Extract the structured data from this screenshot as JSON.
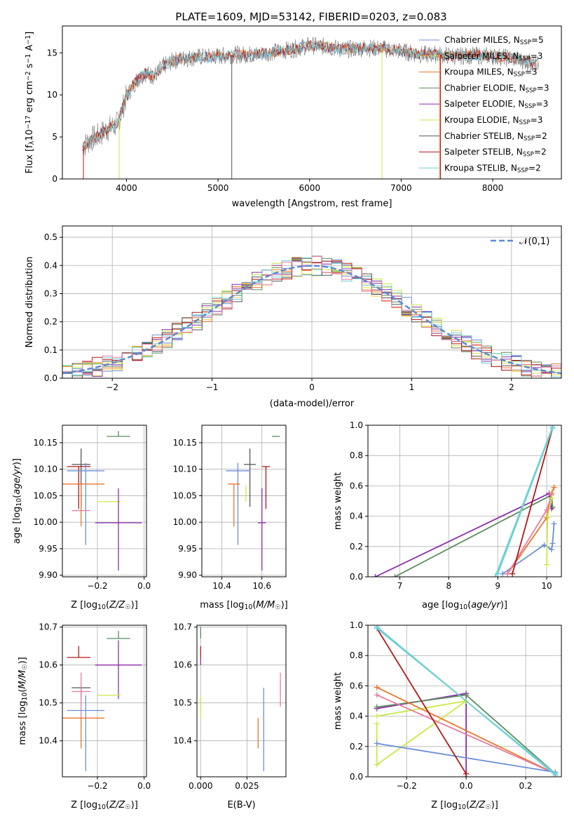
{
  "figure": {
    "title": "PLATE=1609, MJD=53142, FIBERID=0203, z=0.083"
  },
  "colors": {
    "chabrier_miles": "#6a8fd9",
    "salpeter_miles": "#e1d14f",
    "kroupa_miles": "#e8772c",
    "chabrier_elodie": "#5b8d5e",
    "salpeter_elodie": "#8d2dad",
    "kroupa_elodie": "#c8ea46",
    "chabrier_stelib": "#555555",
    "salpeter_stelib": "#b01818",
    "kroupa_stelib": "#6ed1d3",
    "pink": "#e87aa2",
    "gauss": "#5b8ad7",
    "data": "#777777",
    "grid": "#b0b0b0"
  },
  "chart_data": [
    {
      "id": "spectrum",
      "type": "line",
      "title": "PLATE=1609, MJD=53142, FIBERID=0203, z=0.083",
      "xlabel": "wavelength [Angstrom, rest frame]",
      "ylabel": "Flux [f_λ 10^-17 erg cm^-2 s^-1 A^-1]",
      "xlim": [
        3300,
        8750
      ],
      "ylim": [
        0,
        18.2
      ],
      "xticks": [
        4000,
        5000,
        6000,
        7000,
        8000
      ],
      "yticks": [
        0,
        5,
        10,
        15
      ],
      "legend_position": "right",
      "legend": [
        "Chabrier MILES, N_SSP=5",
        "Salpeter MILES, N_SSP=3",
        "Kroupa MILES, N_SSP=3",
        "Chabrier ELODIE, N_SSP=3",
        "Salpeter ELODIE, N_SSP=3",
        "Kroupa ELODIE, N_SSP=3",
        "Chabrier STELIB, N_SSP=2",
        "Salpeter STELIB, N_SSP=2",
        "Kroupa STELIB, N_SSP=2"
      ],
      "model_continuum": {
        "x": [
          3520,
          3600,
          3700,
          3800,
          3900,
          4000,
          4100,
          4200,
          4300,
          4400,
          4500,
          4600,
          4800,
          5000,
          5200,
          5400,
          5600,
          5800,
          6000,
          6200,
          6400,
          6600,
          6800,
          7000,
          7200,
          7400,
          7600,
          7800,
          8000,
          8200,
          8400,
          8500
        ],
        "y": [
          3.8,
          4.6,
          5.2,
          6.0,
          6.5,
          9.8,
          11.6,
          12.6,
          12.2,
          13.4,
          14.0,
          14.3,
          14.5,
          14.6,
          14.8,
          14.8,
          15.1,
          15.4,
          15.9,
          15.7,
          15.4,
          15.6,
          15.5,
          15.2,
          14.8,
          14.8,
          14.6,
          14.7,
          14.6,
          14.4,
          13.9,
          13.5
        ]
      }
    },
    {
      "id": "residual-histogram",
      "type": "line",
      "xlabel": "(data-model)/error",
      "ylabel": "Normed distribution",
      "xlim": [
        -2.5,
        2.5
      ],
      "ylim": [
        0,
        0.54
      ],
      "xticks": [
        -2,
        -1,
        0,
        1,
        2
      ],
      "yticks": [
        0.0,
        0.1,
        0.2,
        0.3,
        0.4,
        0.5
      ],
      "legend": [
        "𝒩(0,1)"
      ],
      "legend_position": "top-right",
      "bin_width": 0.1
    },
    {
      "id": "age-vs-metallicity",
      "type": "scatter",
      "xlabel": "Z [log10(Z/Z☉)]",
      "ylabel": "age [log10(age/yr)]",
      "xlim": [
        -0.35,
        0.01
      ],
      "ylim": [
        9.897,
        10.183
      ],
      "xticks": [
        -0.2,
        0.0
      ],
      "yticks": [
        9.9,
        9.95,
        10.0,
        10.05,
        10.1,
        10.15
      ],
      "points": [
        {
          "c": "chabrier_elodie",
          "x": -0.11,
          "y": 10.162,
          "xerr": 0.05,
          "yerr": [
            0.0,
            0.01
          ]
        },
        {
          "c": "chabrier_stelib",
          "x": -0.27,
          "y": 10.109,
          "xerr": 0.04,
          "yerr": [
            0.08,
            0.03
          ]
        },
        {
          "c": "salpeter_stelib",
          "x": -0.28,
          "y": 10.105,
          "xerr": 0.05,
          "yerr": [
            0.08,
            0.0
          ]
        },
        {
          "c": "chabrier_miles",
          "x": -0.25,
          "y": 10.097,
          "xerr": 0.08,
          "yerr": [
            0.14,
            0.015
          ]
        },
        {
          "c": "kroupa_miles",
          "x": -0.27,
          "y": 10.072,
          "xerr": 0.1,
          "yerr": [
            0.08,
            0.0
          ]
        },
        {
          "c": "kroupa_elodie",
          "x": -0.15,
          "y": 10.039,
          "xerr": 0.05,
          "yerr": [
            0.0,
            0.0
          ]
        },
        {
          "c": "pink",
          "x": -0.27,
          "y": 10.022,
          "xerr": 0.04,
          "yerr": [
            0.0,
            0.0
          ]
        },
        {
          "c": "salpeter_elodie",
          "x": -0.11,
          "y": 9.999,
          "xerr": 0.1,
          "yerr": [
            0.09,
            0.065
          ]
        }
      ]
    },
    {
      "id": "age-vs-mass",
      "type": "scatter",
      "xlabel": "mass [log10(M/M☉)]",
      "ylabel": "",
      "xlim": [
        10.3,
        10.72
      ],
      "ylim": [
        9.897,
        10.183
      ],
      "xticks": [
        10.4,
        10.6
      ],
      "yticks": [
        9.9,
        9.95,
        10.0,
        10.05,
        10.1,
        10.15
      ],
      "points": [
        {
          "c": "chabrier_elodie",
          "x": 10.67,
          "y": 10.162,
          "xerr": 0.02,
          "yerr": [
            0.0,
            0.0
          ]
        },
        {
          "c": "chabrier_stelib",
          "x": 10.54,
          "y": 10.109,
          "xerr": 0.03,
          "yerr": [
            0.08,
            0.03
          ]
        },
        {
          "c": "salpeter_stelib",
          "x": 10.62,
          "y": 10.105,
          "xerr": 0.02,
          "yerr": [
            0.08,
            0.0
          ]
        },
        {
          "c": "chabrier_miles",
          "x": 10.48,
          "y": 10.097,
          "xerr": 0.06,
          "yerr": [
            0.14,
            0.015
          ]
        },
        {
          "c": "kroupa_miles",
          "x": 10.46,
          "y": 10.072,
          "xerr": 0.03,
          "yerr": [
            0.08,
            0.0
          ]
        },
        {
          "c": "kroupa_elodie",
          "x": 10.52,
          "y": 10.039,
          "xerr": 0.0,
          "yerr": [
            0.0,
            0.03
          ]
        },
        {
          "c": "pink",
          "x": 10.53,
          "y": 10.022,
          "xerr": 0.0,
          "yerr": [
            0.0,
            0.0
          ]
        },
        {
          "c": "salpeter_elodie",
          "x": 10.6,
          "y": 9.999,
          "xerr": 0.02,
          "yerr": [
            0.09,
            0.065
          ]
        }
      ]
    },
    {
      "id": "mass-weight-vs-age",
      "type": "line",
      "xlabel": "age [log10(age/yr)]",
      "ylabel": "mass weight",
      "xlim": [
        6.35,
        10.3
      ],
      "ylim": [
        0,
        1.0
      ],
      "xticks": [
        7,
        8,
        9,
        10
      ],
      "yticks": [
        0.0,
        0.2,
        0.4,
        0.6,
        0.8,
        1.0
      ],
      "series": [
        {
          "c": "chabrier_elodie",
          "x": [
            6.9,
            10.1,
            10.12
          ],
          "y": [
            0.0,
            0.54,
            0.46
          ]
        },
        {
          "c": "salpeter_elodie",
          "x": [
            6.5,
            10.05,
            10.1
          ],
          "y": [
            0.0,
            0.55,
            0.45
          ]
        },
        {
          "c": "chabrier_miles",
          "x": [
            9.1,
            9.95,
            10.1,
            10.12,
            10.15
          ],
          "y": [
            0.02,
            0.21,
            0.18,
            0.22,
            0.35
          ]
        },
        {
          "c": "kroupa_miles",
          "x": [
            9.2,
            10.0,
            10.1,
            10.15
          ],
          "y": [
            0.02,
            0.39,
            0.55,
            0.59
          ]
        },
        {
          "c": "pink",
          "x": [
            9.2,
            10.0,
            10.1
          ],
          "y": [
            0.02,
            0.44,
            0.54
          ]
        },
        {
          "c": "kroupa_elodie",
          "x": [
            10.0,
            10.02,
            10.1
          ],
          "y": [
            0.08,
            0.4,
            0.52
          ]
        },
        {
          "c": "salpeter_stelib",
          "x": [
            9.3,
            10.12
          ],
          "y": [
            0.02,
            0.98
          ]
        },
        {
          "c": "kroupa_stelib",
          "x": [
            8.95,
            10.12
          ],
          "y": [
            0.0,
            0.99
          ]
        },
        {
          "c": "kroupa_stelib",
          "x": [
            9.0,
            10.12
          ],
          "y": [
            0.02,
            0.98
          ]
        }
      ]
    },
    {
      "id": "mass-vs-metallicity",
      "type": "scatter",
      "xlabel": "Z [log10(Z/Z☉)]",
      "ylabel": "mass [log10(M/M☉)]",
      "xlim": [
        -0.35,
        0.01
      ],
      "ylim": [
        10.305,
        10.705
      ],
      "xticks": [
        -0.2,
        0.0
      ],
      "yticks": [
        10.4,
        10.5,
        10.6,
        10.7
      ],
      "points": [
        {
          "c": "chabrier_elodie",
          "x": -0.11,
          "y": 10.67,
          "xerr": 0.05,
          "yerr": [
            0.0,
            0.02
          ]
        },
        {
          "c": "salpeter_stelib",
          "x": -0.28,
          "y": 10.62,
          "xerr": 0.05,
          "yerr": [
            0.0,
            0.03
          ]
        },
        {
          "c": "salpeter_elodie",
          "x": -0.11,
          "y": 10.6,
          "xerr": 0.1,
          "yerr": [
            0.09,
            0.065
          ]
        },
        {
          "c": "chabrier_stelib",
          "x": -0.27,
          "y": 10.54,
          "xerr": 0.04,
          "yerr": [
            0.03,
            0.0
          ]
        },
        {
          "c": "pink",
          "x": -0.27,
          "y": 10.53,
          "xerr": 0.04,
          "yerr": [
            0.08,
            0.05
          ]
        },
        {
          "c": "kroupa_elodie",
          "x": -0.15,
          "y": 10.52,
          "xerr": 0.05,
          "yerr": [
            0.0,
            0.0
          ]
        },
        {
          "c": "chabrier_miles",
          "x": -0.25,
          "y": 10.48,
          "xerr": 0.08,
          "yerr": [
            0.16,
            0.04
          ]
        },
        {
          "c": "kroupa_miles",
          "x": -0.27,
          "y": 10.46,
          "xerr": 0.1,
          "yerr": [
            0.08,
            0.0
          ]
        }
      ]
    },
    {
      "id": "mass-vs-extinction",
      "type": "scatter",
      "xlabel": "E(B-V)",
      "ylabel": "",
      "xlim": [
        -0.002,
        0.046
      ],
      "ylim": [
        10.305,
        10.705
      ],
      "xticks": [
        0.0,
        0.025
      ],
      "yticks": [
        10.4,
        10.5,
        10.6,
        10.7
      ],
      "points": [
        {
          "c": "chabrier_elodie",
          "x": 0.0,
          "y": 10.67,
          "xerr": 0.0,
          "yerr": [
            0.0,
            0.03
          ]
        },
        {
          "c": "salpeter_stelib",
          "x": 0.0,
          "y": 10.62,
          "xerr": 0.0,
          "yerr": [
            0.0,
            0.03
          ]
        },
        {
          "c": "salpeter_elodie",
          "x": 0.0,
          "y": 10.6,
          "xerr": 0.0,
          "yerr": [
            0.0,
            0.02
          ]
        },
        {
          "c": "chabrier_stelib",
          "x": 0.0,
          "y": 10.54,
          "xerr": 0.0,
          "yerr": [
            0.0,
            0.0
          ]
        },
        {
          "c": "kroupa_elodie",
          "x": 0.0,
          "y": 10.52,
          "xerr": 0.0,
          "yerr": [
            0.06,
            0.0
          ]
        },
        {
          "c": "kroupa_miles",
          "x": 0.031,
          "y": 10.46,
          "xerr": 0.0,
          "yerr": [
            0.08,
            0.0
          ]
        },
        {
          "c": "chabrier_miles",
          "x": 0.034,
          "y": 10.48,
          "xerr": 0.0,
          "yerr": [
            0.16,
            0.06
          ]
        },
        {
          "c": "pink",
          "x": 0.043,
          "y": 10.53,
          "xerr": 0.0,
          "yerr": [
            0.04,
            0.05
          ]
        }
      ]
    },
    {
      "id": "mass-weight-vs-metallicity",
      "type": "line",
      "xlabel": "Z [log10(Z/Z☉)]",
      "ylabel": "mass weight",
      "xlim": [
        -0.33,
        0.32
      ],
      "ylim": [
        0,
        1.0
      ],
      "xticks": [
        -0.2,
        0.0,
        0.2
      ],
      "yticks": [
        0.0,
        0.2,
        0.4,
        0.6,
        0.8,
        1.0
      ],
      "series": [
        {
          "c": "salpeter_elodie",
          "x": [
            -0.3,
            0.0,
            0.0
          ],
          "y": [
            0.45,
            0.55,
            0.0
          ]
        },
        {
          "c": "chabrier_elodie",
          "x": [
            -0.3,
            0.0,
            0.3
          ],
          "y": [
            0.46,
            0.54,
            0.02
          ]
        },
        {
          "c": "kroupa_elodie",
          "x": [
            -0.3,
            -0.3,
            0.0,
            -0.3
          ],
          "y": [
            0.35,
            0.08,
            0.5,
            0.4
          ]
        },
        {
          "c": "kroupa_miles",
          "x": [
            -0.3,
            0.3
          ],
          "y": [
            0.59,
            0.02
          ]
        },
        {
          "c": "pink",
          "x": [
            -0.3,
            0.3
          ],
          "y": [
            0.54,
            0.02
          ]
        },
        {
          "c": "chabrier_miles",
          "x": [
            -0.3,
            0.3
          ],
          "y": [
            0.22,
            0.03
          ]
        },
        {
          "c": "salpeter_stelib",
          "x": [
            -0.3,
            0.0
          ],
          "y": [
            0.98,
            0.02
          ]
        },
        {
          "c": "kroupa_stelib",
          "x": [
            -0.3,
            0.3
          ],
          "y": [
            0.99,
            0.01
          ]
        },
        {
          "c": "kroupa_stelib",
          "x": [
            -0.3,
            0.3
          ],
          "y": [
            0.98,
            0.02
          ]
        }
      ]
    }
  ]
}
